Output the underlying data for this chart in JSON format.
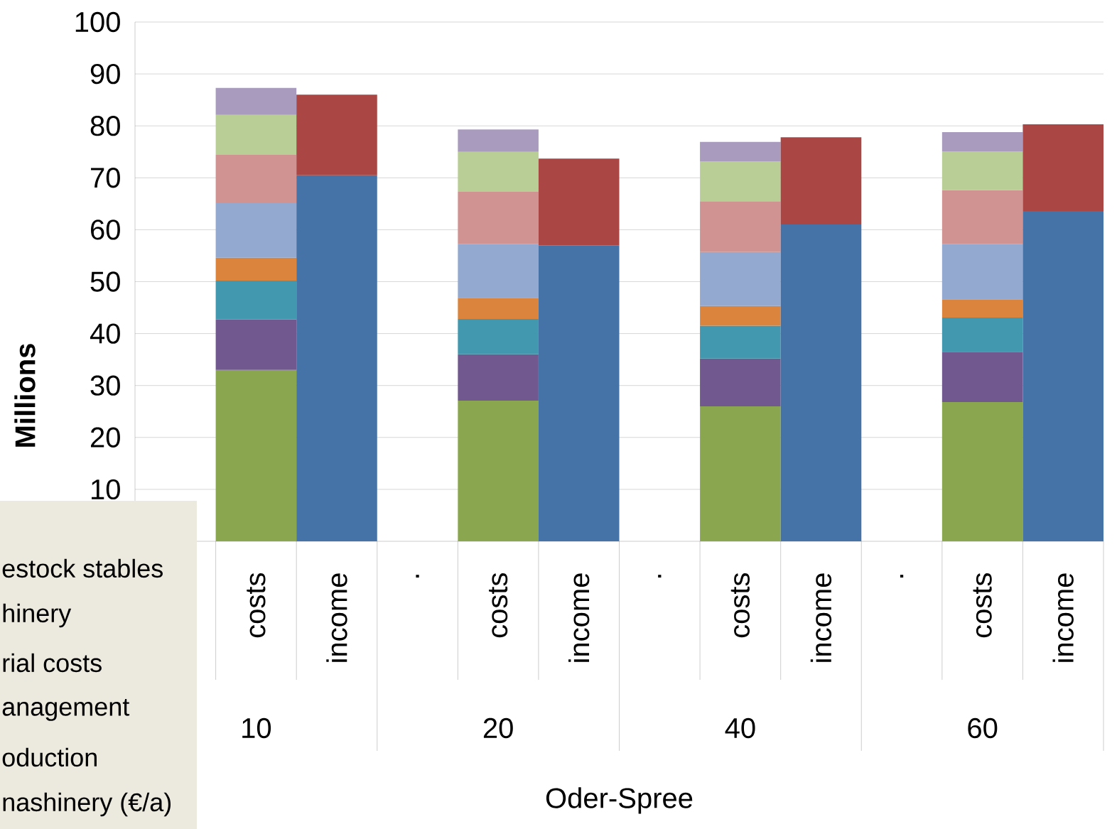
{
  "chart_data": {
    "type": "bar",
    "stacked": true,
    "ylabel": "Millions",
    "xlabel": "Oder-Spree",
    "categories": [
      null,
      "costs",
      "income",
      ".",
      "costs",
      "income",
      ".",
      "costs",
      "income",
      ".",
      "costs",
      "income"
    ],
    "series": [
      {
        "color": "#8aa64e",
        "values": [
          null,
          33.0,
          null,
          null,
          27.1,
          null,
          null,
          26.0,
          null,
          null,
          26.8,
          null
        ]
      },
      {
        "color": "#71588f",
        "values": [
          null,
          9.7,
          null,
          null,
          8.9,
          null,
          null,
          9.2,
          null,
          null,
          9.7,
          null
        ]
      },
      {
        "color": "#4198af",
        "values": [
          null,
          7.5,
          null,
          null,
          6.8,
          null,
          null,
          6.3,
          null,
          null,
          6.6,
          null
        ]
      },
      {
        "color": "#db843d",
        "values": [
          null,
          4.4,
          null,
          null,
          4.1,
          null,
          null,
          3.8,
          null,
          null,
          3.5,
          null
        ]
      },
      {
        "color": "#93a9cf",
        "values": [
          null,
          10.5,
          null,
          null,
          10.4,
          null,
          null,
          10.4,
          null,
          null,
          10.7,
          null
        ]
      },
      {
        "color": "#d19392",
        "values": [
          null,
          9.3,
          null,
          null,
          10.0,
          null,
          null,
          9.8,
          null,
          null,
          10.3,
          null
        ]
      },
      {
        "color": "#b9cd96",
        "values": [
          null,
          7.7,
          null,
          null,
          7.7,
          null,
          null,
          7.7,
          null,
          null,
          7.5,
          null
        ]
      },
      {
        "color": "#a99bbd",
        "values": [
          null,
          5.2,
          null,
          null,
          4.3,
          null,
          null,
          3.7,
          null,
          null,
          3.7,
          null
        ]
      },
      {
        "color": "#4572a7",
        "values": [
          null,
          null,
          70.5,
          null,
          null,
          57.0,
          null,
          null,
          61.0,
          null,
          null,
          63.6
        ]
      },
      {
        "color": "#aa4643",
        "values": [
          null,
          null,
          15.5,
          null,
          null,
          16.7,
          null,
          null,
          16.8,
          null,
          null,
          16.7
        ]
      }
    ],
    "ylim": [
      0,
      100
    ],
    "yticks": [
      10,
      20,
      30,
      40,
      50,
      60,
      70,
      80,
      90,
      100
    ],
    "grid": "y",
    "annotations": [
      "10",
      "20",
      "40",
      "60",
      "estock stables",
      "hinery",
      "rial costs",
      "anagement",
      "oduction",
      "nashinery (€/a)"
    ]
  }
}
